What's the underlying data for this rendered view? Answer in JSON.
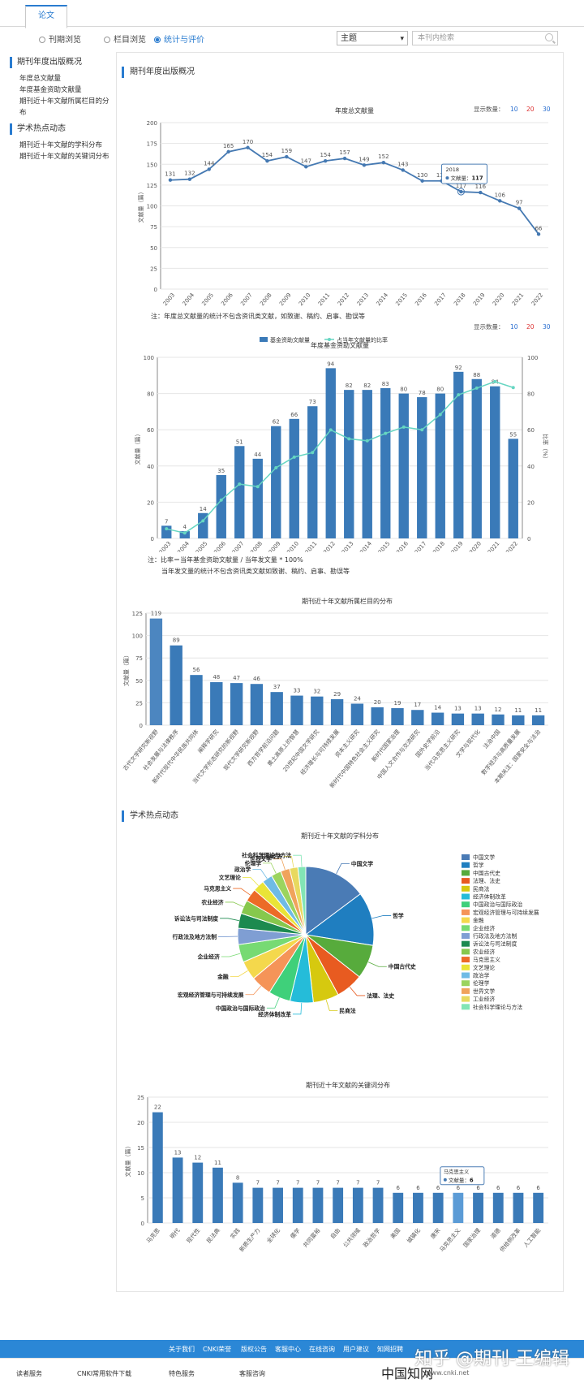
{
  "tab": "论文",
  "radios": [
    "刊期浏览",
    "栏目浏览",
    "统计与评价"
  ],
  "select_value": "主题",
  "search_placeholder": "本刊内检索",
  "sidebar": {
    "group1": "期刊年度出版概况",
    "items1": [
      "年度总文献量",
      "年度基金资助文献量",
      "期刊近十年文献所属栏目的分布"
    ],
    "group2": "学术热点动态",
    "items2": [
      "期刊近十年文献的学科分布",
      "期刊近十年文献的关键词分布"
    ]
  },
  "section1_title": "期刊年度出版概况",
  "section2_title": "学术热点动态",
  "display_count_label": "显示数量：",
  "display_count_options": [
    "10",
    "20",
    "30"
  ],
  "note1": "注：年度总文献量的统计不包含资讯类文献，如致谢、稿约、启事、勘误等",
  "note2": [
    "注：比率＝当年基金资助文献量 / 当年发文量 * 100%",
    "当年发文量的统计不包含资讯类文献如致谢、稿约、启事、勘误等"
  ],
  "colors": {
    "primary": "#3a7ab8",
    "line": "#4579b2",
    "accent_line": "#66d6c2"
  },
  "chart_data": [
    {
      "type": "line",
      "title": "年度总文献量",
      "ylabel": "文献量（篇）",
      "ylim": [
        0,
        200
      ],
      "yticks": [
        0,
        25,
        50,
        75,
        100,
        125,
        150,
        175,
        200
      ],
      "x": [
        "2003",
        "2004",
        "2005",
        "2006",
        "2007",
        "2008",
        "2009",
        "2010",
        "2011",
        "2012",
        "2013",
        "2014",
        "2015",
        "2016",
        "2017",
        "2018",
        "2019",
        "2020",
        "2021",
        "2022"
      ],
      "values": [
        131,
        132,
        144,
        165,
        170,
        154,
        159,
        147,
        154,
        157,
        149,
        152,
        143,
        130,
        130,
        117,
        116,
        106,
        97,
        66
      ],
      "tooltip": {
        "x": "2018",
        "label": "文献量：",
        "value": "117"
      }
    },
    {
      "type": "bar",
      "title": "年度基金资助文献量",
      "ylabel": "文献量（篇）",
      "ylabel_right": "比率（%）",
      "ylim": [
        0,
        100
      ],
      "yticks": [
        0,
        20,
        40,
        60,
        80,
        100
      ],
      "categories": [
        "2003",
        "2004",
        "2005",
        "2006",
        "2007",
        "2008",
        "2009",
        "2010",
        "2011",
        "2012",
        "2013",
        "2014",
        "2015",
        "2016",
        "2017",
        "2018",
        "2019",
        "2020",
        "2021",
        "2022"
      ],
      "series": [
        {
          "name": "基金资助文献量",
          "values": [
            7,
            4,
            14,
            35,
            51,
            44,
            62,
            66,
            73,
            94,
            82,
            82,
            83,
            80,
            78,
            80,
            92,
            88,
            84,
            55
          ]
        },
        {
          "name": "占当年文献量的比率",
          "values": [
            5.3,
            3.0,
            9.7,
            21.2,
            30.0,
            28.6,
            39.0,
            44.9,
            47.4,
            59.9,
            55.0,
            53.9,
            58.0,
            61.5,
            60.0,
            68.4,
            79.3,
            83.0,
            86.6,
            83.3
          ]
        }
      ]
    },
    {
      "type": "bar",
      "title": "期刊近十年文献所属栏目的分布",
      "ylabel": "文献量（篇）",
      "ylim": [
        0,
        125
      ],
      "yticks": [
        0,
        25,
        50,
        75,
        100,
        125
      ],
      "categories": [
        "古代文学研究新视野",
        "社会发展与法律秩序",
        "新时代现代中华民族共同体",
        "阐释学研究",
        "当代文学形态研究的新视野",
        "现代文学研究新视野",
        "西方哲学前沿问题",
        "黄土高原上的智慧",
        "20世纪中国文学研究",
        "经济增长与可持续发展",
        "资本主义研究",
        "新时代中国特色社会主义研究",
        "新时代国家治理",
        "中国人文合作与交流研究",
        "国外史学前沿",
        "当代马克思主义研究",
        "文学与现代化",
        "法治中国",
        "数字经济与高质量发展",
        "本期关注：国家安全与法治"
      ],
      "values": [
        119,
        89,
        56,
        48,
        47,
        46,
        37,
        33,
        32,
        29,
        24,
        20,
        19,
        17,
        14,
        13,
        13,
        12,
        11,
        11
      ]
    },
    {
      "type": "pie",
      "title": "期刊近十年文献的学科分布",
      "categories": [
        "中国文学",
        "哲学",
        "中国古代史",
        "法理、法史",
        "民商法",
        "经济体制改革",
        "中国政治与国际政治",
        "宏观经济管理与可持续发展",
        "金融",
        "企业经济",
        "行政法及地方法制",
        "诉讼法与司法制度",
        "农业经济",
        "马克思主义",
        "文艺理论",
        "政治学",
        "伦理学",
        "世界文学",
        "工业经济",
        "社会科学理论与方法"
      ],
      "values": [
        15.0,
        12.9,
        8.2,
        6.6,
        6.2,
        5.6,
        5.3,
        5.0,
        4.6,
        4.3,
        3.9,
        3.6,
        3.3,
        3.1,
        2.8,
        2.5,
        2.4,
        2.2,
        2.0,
        1.9
      ],
      "colors": [
        "#4a7bb5",
        "#1f7ec0",
        "#57ab3c",
        "#e85b20",
        "#d6c90f",
        "#25bcd9",
        "#3fd07a",
        "#f59458",
        "#f4d84c",
        "#77da73",
        "#7f9ed3",
        "#1c8a4f",
        "#86c84d",
        "#ec6b27",
        "#e9e437",
        "#6fbbe5",
        "#9bd45f",
        "#f0a35c",
        "#e8d95f",
        "#82e5b5"
      ]
    },
    {
      "type": "bar",
      "title": "期刊近十年文献的关键词分布",
      "ylabel": "文献量（篇）",
      "ylim": [
        0,
        25
      ],
      "yticks": [
        0,
        5,
        10,
        15,
        20,
        25
      ],
      "categories": [
        "马克思",
        "明代",
        "现代性",
        "民法典",
        "实践",
        "新质生产力",
        "全球化",
        "儒学",
        "共同富裕",
        "自由",
        "公共领域",
        "政治哲学",
        "美国",
        "城镇化",
        "唐宋",
        "马克思主义",
        "国家治理",
        "道德",
        "供给侧改革",
        "人工智能"
      ],
      "values": [
        22,
        13,
        12,
        11,
        8,
        7,
        7,
        7,
        7,
        7,
        7,
        7,
        6,
        6,
        6,
        6,
        6,
        6,
        6,
        6
      ],
      "highlight_index": 15,
      "tooltip": {
        "x": "马克思主义",
        "label": "文献量：",
        "value": "6"
      }
    }
  ],
  "footer_links": [
    "关于我们",
    "CNKI荣誉",
    "版权公告",
    "客服中心",
    "在线咨询",
    "用户建议",
    "知网招聘"
  ],
  "bottom_links": [
    "读者服务",
    "CNKI常用软件下载",
    "特色服务",
    "客服咨询"
  ],
  "logo_text": "中国知网",
  "site_url": "www.cnki.net",
  "watermark": "知乎 @期刊-王编辑"
}
